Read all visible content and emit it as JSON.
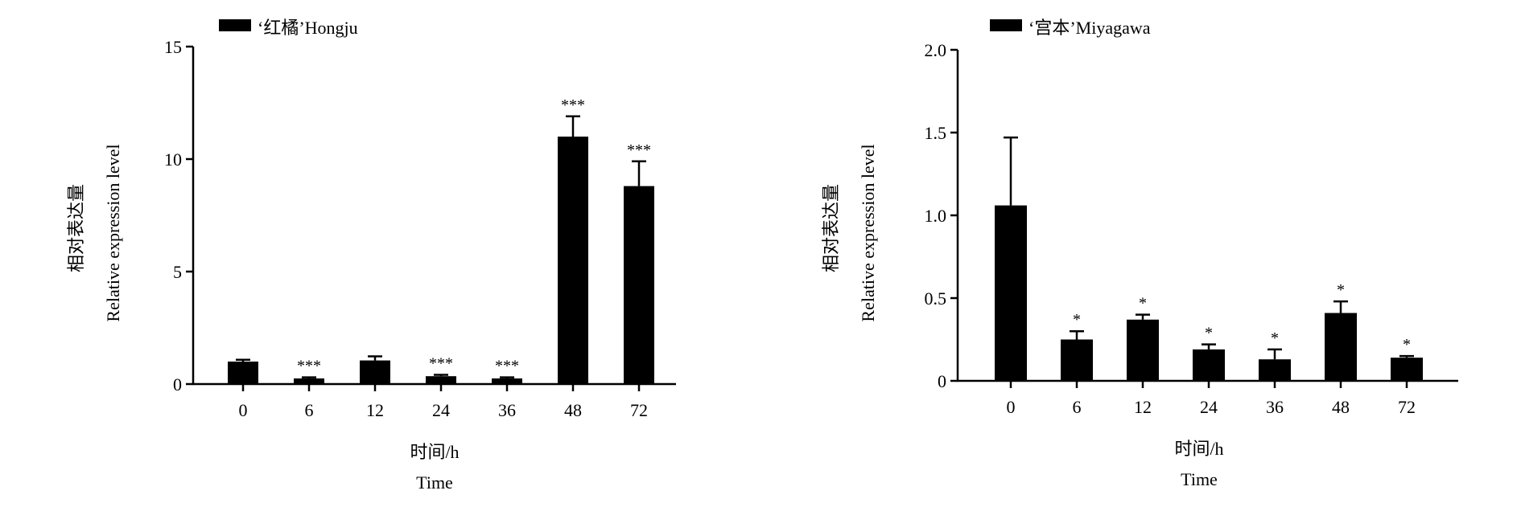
{
  "chart_data": [
    {
      "type": "bar",
      "legend": "‘红橘’Hongju",
      "categories": [
        "0",
        "6",
        "12",
        "24",
        "36",
        "48",
        "72"
      ],
      "values": [
        1.0,
        0.25,
        1.05,
        0.35,
        0.25,
        11.0,
        8.8
      ],
      "errors": [
        0.08,
        0.05,
        0.18,
        0.06,
        0.05,
        0.9,
        1.1
      ],
      "significance": [
        "",
        "***",
        "",
        "***",
        "***",
        "***",
        "***"
      ],
      "ylim": [
        0,
        15
      ],
      "yticks": [
        "0",
        "5",
        "10",
        "15"
      ],
      "ytick_values": [
        0,
        5,
        10,
        15
      ],
      "ylabel_cn": "相对表达量",
      "ylabel_en": "Relative expression level",
      "xlabel_cn": "时间/h",
      "xlabel_en": "Time",
      "bar_color": "#000000",
      "grid": false,
      "legend_position": "top-left"
    },
    {
      "type": "bar",
      "legend": "‘宫本’Miyagawa",
      "categories": [
        "0",
        "6",
        "12",
        "24",
        "36",
        "48",
        "72"
      ],
      "values": [
        1.06,
        0.25,
        0.37,
        0.19,
        0.13,
        0.41,
        0.14
      ],
      "errors": [
        0.41,
        0.05,
        0.03,
        0.03,
        0.06,
        0.07,
        0.01
      ],
      "significance": [
        "",
        "*",
        "*",
        "*",
        "*",
        "*",
        "*"
      ],
      "ylim": [
        0,
        2.0
      ],
      "yticks": [
        "0",
        "0.5",
        "1.0",
        "1.5",
        "2.0"
      ],
      "ytick_values": [
        0,
        0.5,
        1.0,
        1.5,
        2.0
      ],
      "ylabel_cn": "相对表达量",
      "ylabel_en": "Relative expression level",
      "xlabel_cn": "时间/h",
      "xlabel_en": "Time",
      "bar_color": "#000000",
      "grid": false,
      "legend_position": "top-left"
    }
  ]
}
